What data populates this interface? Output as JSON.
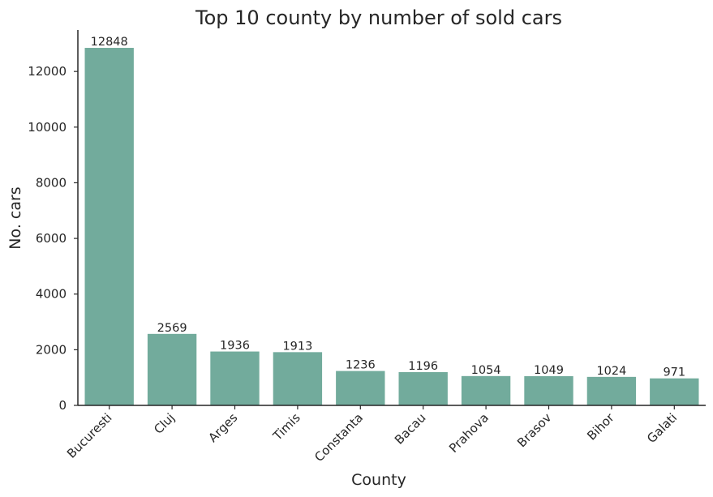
{
  "chart_data": {
    "type": "bar",
    "title": "Top 10 county by number of sold cars",
    "xlabel": "County",
    "ylabel": "No. cars",
    "categories": [
      "Bucuresti",
      "Cluj",
      "Arges",
      "Timis",
      "Constanta",
      "Bacau",
      "Prahova",
      "Brasov",
      "Bihor",
      "Galati"
    ],
    "values": [
      12848,
      2569,
      1936,
      1913,
      1236,
      1196,
      1054,
      1049,
      1024,
      971
    ],
    "yticks": [
      0,
      2000,
      4000,
      6000,
      8000,
      10000,
      12000
    ],
    "ylim": [
      0,
      13490
    ],
    "grid": false,
    "bar_color": "#72ab9c"
  }
}
